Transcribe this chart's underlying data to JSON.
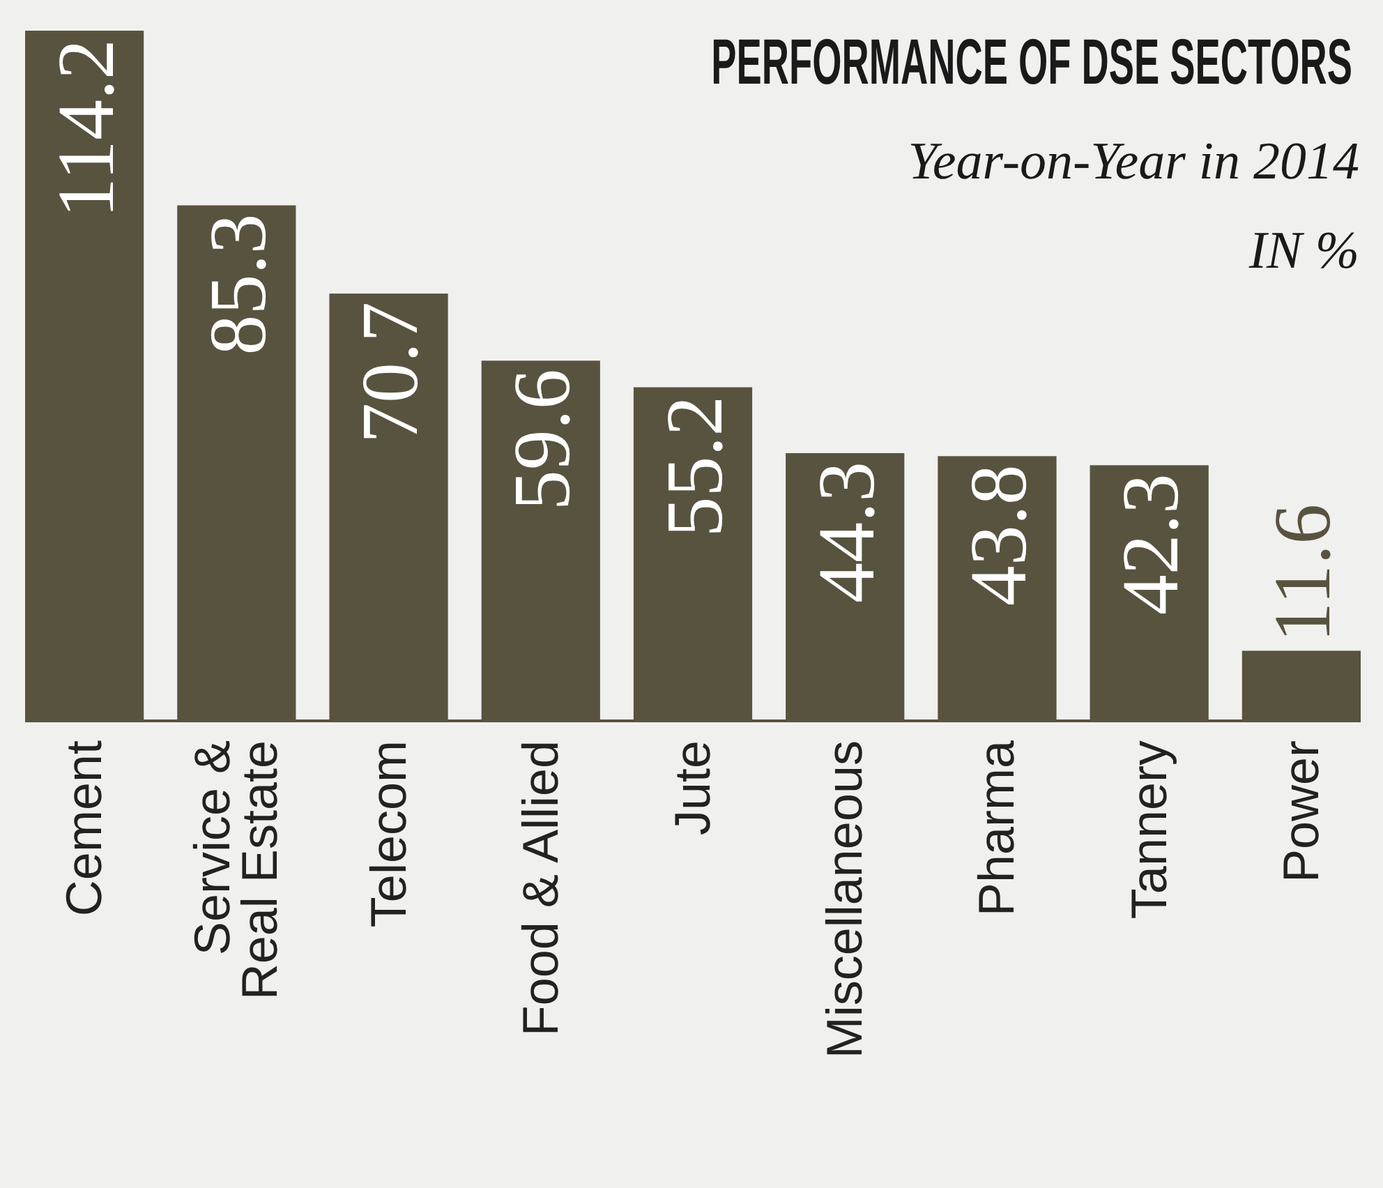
{
  "chart_data": {
    "type": "bar",
    "title": "PERFORMANCE OF DSE SECTORS",
    "subtitle": "Year-on-Year in 2014",
    "ylabel": "IN %",
    "categories": [
      "Cement",
      "Service &\nReal Estate",
      "Telecom",
      "Food & Allied",
      "Jute",
      "Miscellaneous",
      "Pharma",
      "Tannery",
      "Power"
    ],
    "values": [
      114.2,
      85.3,
      70.7,
      59.6,
      55.2,
      44.3,
      43.8,
      42.3,
      11.6
    ],
    "color": "#58533f",
    "data_labels": true
  }
}
